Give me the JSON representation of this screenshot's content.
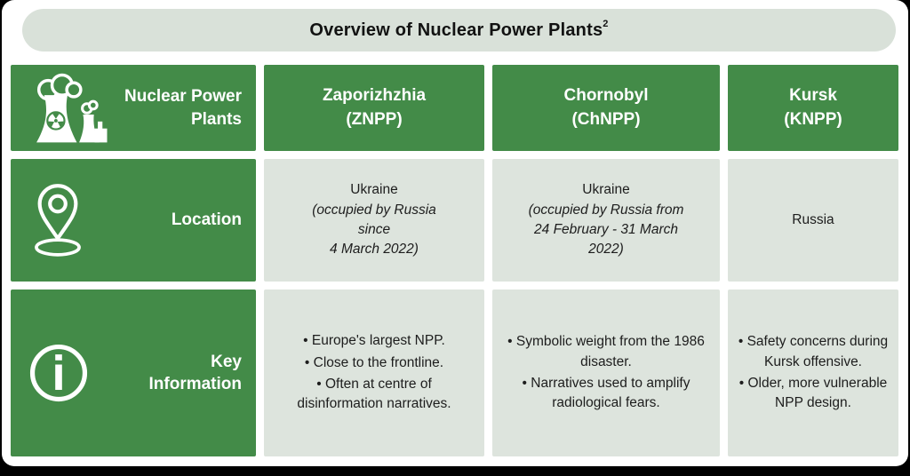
{
  "title": {
    "text": "Overview of Nuclear Power Plants",
    "superscript": "2"
  },
  "colors": {
    "green": "#438b48",
    "cell_light": "#dde4dd",
    "title_bar": "#d9e1d9",
    "text_dark": "#1d1d1d"
  },
  "table": {
    "corner": {
      "label": "Nuclear Power\nPlants",
      "icon": "nuclear-plant-icon"
    },
    "columns": [
      {
        "name": "Zaporizhzhia",
        "code": "(ZNPP)"
      },
      {
        "name": "Chornobyl",
        "code": "(ChNPP)"
      },
      {
        "name": "Kursk",
        "code": "(KNPP)"
      }
    ],
    "rows": [
      {
        "label": "Location",
        "icon": "location-pin-icon",
        "cells": [
          {
            "main": "Ukraine",
            "detail": "(occupied by Russia\nsince\n4 March 2022)"
          },
          {
            "main": "Ukraine",
            "detail": "(occupied by Russia from\n24 February - 31 March\n2022)"
          },
          {
            "main": "Russia",
            "detail": ""
          }
        ]
      },
      {
        "label": "Key\nInformation",
        "icon": "info-icon",
        "cells": [
          {
            "bullets": [
              "Europe's largest NPP.",
              "Close to the frontline.",
              "Often at centre of disinformation narratives."
            ]
          },
          {
            "bullets": [
              "Symbolic weight from the 1986 disaster.",
              "Narratives used to amplify radiological fears."
            ]
          },
          {
            "bullets": [
              "Safety concerns during Kursk offensive.",
              "Older, more vulnerable NPP design."
            ]
          }
        ]
      }
    ]
  }
}
